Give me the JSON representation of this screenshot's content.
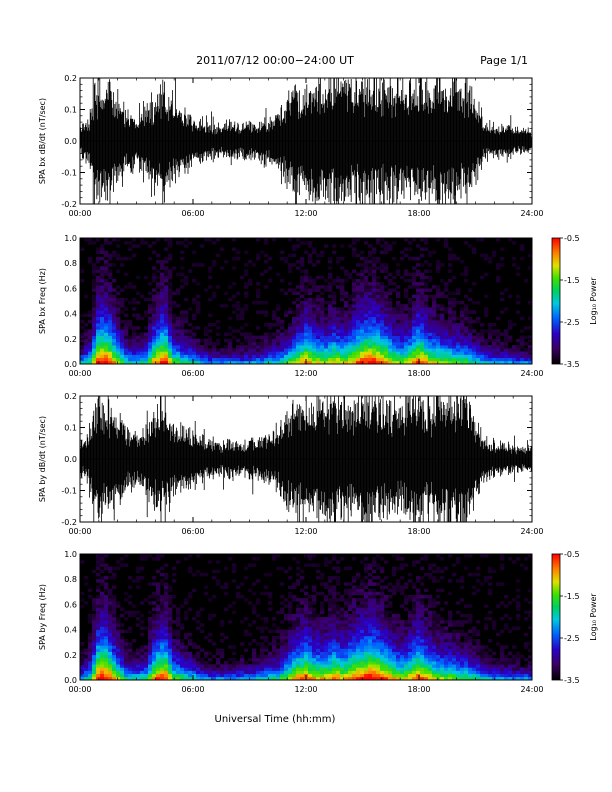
{
  "header": {
    "title": "2011/07/12  00:00−24:00 UT",
    "page": "Page 1/1"
  },
  "footer": {
    "xlabel": "Universal Time (hh:mm)"
  },
  "chart_data": [
    {
      "type": "line",
      "ylabel": "SPA bx dB/dt (nT/sec)",
      "xlim": [
        0,
        24
      ],
      "ylim": [
        -0.2,
        0.2
      ],
      "xticks": [
        "00:00",
        "06:00",
        "12:00",
        "18:00",
        "24:00"
      ],
      "yticks": [
        "-0.2",
        "-0.1",
        "0.0",
        "0.1",
        "0.2"
      ],
      "x": [
        0,
        0.5,
        1,
        1.5,
        2,
        2.5,
        3,
        3.5,
        4,
        4.5,
        5,
        5.5,
        6,
        6.5,
        7,
        7.5,
        8,
        8.5,
        9,
        9.5,
        10,
        10.5,
        11,
        11.5,
        12,
        12.5,
        13,
        13.5,
        14,
        14.5,
        15,
        15.5,
        16,
        16.5,
        17,
        17.5,
        18,
        18.5,
        19,
        19.5,
        20,
        20.5,
        21,
        21.5,
        22,
        22.5,
        23,
        23.5,
        24
      ],
      "amplitude": [
        0.05,
        0.08,
        0.2,
        0.2,
        0.15,
        0.1,
        0.09,
        0.1,
        0.15,
        0.2,
        0.12,
        0.1,
        0.08,
        0.06,
        0.05,
        0.05,
        0.06,
        0.05,
        0.06,
        0.06,
        0.08,
        0.09,
        0.15,
        0.2,
        0.2,
        0.2,
        0.2,
        0.2,
        0.2,
        0.2,
        0.2,
        0.2,
        0.2,
        0.2,
        0.2,
        0.2,
        0.2,
        0.2,
        0.2,
        0.2,
        0.2,
        0.2,
        0.14,
        0.06,
        0.05,
        0.05,
        0.04,
        0.04,
        0.04
      ]
    },
    {
      "type": "heatmap",
      "ylabel": "SPA bx Freq (Hz)",
      "xlim": [
        0,
        24
      ],
      "ylim": [
        0,
        1.0
      ],
      "xticks": [
        "00:00",
        "06:00",
        "12:00",
        "18:00",
        "24:00"
      ],
      "yticks": [
        "0.0",
        "0.2",
        "0.4",
        "0.6",
        "0.8",
        "1.0"
      ],
      "colorbar": {
        "label": "Log₁₀ Power",
        "range": [
          -3.5,
          -0.5
        ],
        "ticks": [
          "-0.5",
          "-1.5",
          "-2.5",
          "-3.5"
        ]
      },
      "x": [
        0,
        0.5,
        1,
        1.5,
        2,
        2.5,
        3,
        3.5,
        4,
        4.5,
        5,
        5.5,
        6,
        6.5,
        7,
        7.5,
        8,
        8.5,
        9,
        9.5,
        10,
        10.5,
        11,
        11.5,
        12,
        12.5,
        13,
        13.5,
        14,
        14.5,
        15,
        15.5,
        16,
        16.5,
        17,
        17.5,
        18,
        18.5,
        19,
        19.5,
        20,
        20.5,
        21,
        21.5,
        22,
        22.5,
        23,
        23.5,
        24
      ],
      "activity": [
        0.2,
        0.35,
        1.0,
        0.95,
        0.6,
        0.3,
        0.3,
        0.35,
        0.8,
        0.95,
        0.5,
        0.4,
        0.3,
        0.2,
        0.15,
        0.15,
        0.15,
        0.15,
        0.18,
        0.2,
        0.25,
        0.3,
        0.45,
        0.6,
        0.8,
        0.65,
        0.6,
        0.7,
        0.6,
        0.75,
        0.9,
        0.95,
        0.85,
        0.7,
        0.55,
        0.65,
        0.9,
        0.7,
        0.6,
        0.55,
        0.5,
        0.45,
        0.35,
        0.25,
        0.2,
        0.2,
        0.15,
        0.15,
        0.15
      ]
    },
    {
      "type": "line",
      "ylabel": "SPA by dB/dt (nT/sec)",
      "xlim": [
        0,
        24
      ],
      "ylim": [
        -0.2,
        0.2
      ],
      "xticks": [
        "00:00",
        "06:00",
        "12:00",
        "18:00",
        "24:00"
      ],
      "yticks": [
        "-0.2",
        "-0.1",
        "0.0",
        "0.1",
        "0.2"
      ],
      "x": [
        0,
        0.5,
        1,
        1.5,
        2,
        2.5,
        3,
        3.5,
        4,
        4.5,
        5,
        5.5,
        6,
        6.5,
        7,
        7.5,
        8,
        8.5,
        9,
        9.5,
        10,
        10.5,
        11,
        11.5,
        12,
        12.5,
        13,
        13.5,
        14,
        14.5,
        15,
        15.5,
        16,
        16.5,
        17,
        17.5,
        18,
        18.5,
        19,
        19.5,
        20,
        20.5,
        21,
        21.5,
        22,
        22.5,
        23,
        23.5,
        24
      ],
      "amplitude": [
        0.05,
        0.08,
        0.2,
        0.2,
        0.14,
        0.1,
        0.09,
        0.1,
        0.15,
        0.2,
        0.12,
        0.1,
        0.09,
        0.07,
        0.06,
        0.05,
        0.06,
        0.05,
        0.06,
        0.06,
        0.08,
        0.09,
        0.16,
        0.2,
        0.2,
        0.2,
        0.2,
        0.2,
        0.2,
        0.2,
        0.2,
        0.2,
        0.2,
        0.2,
        0.2,
        0.2,
        0.2,
        0.2,
        0.2,
        0.2,
        0.2,
        0.2,
        0.13,
        0.07,
        0.05,
        0.05,
        0.04,
        0.04,
        0.04
      ]
    },
    {
      "type": "heatmap",
      "ylabel": "SPA by Freq (Hz)",
      "xlim": [
        0,
        24
      ],
      "ylim": [
        0,
        1.0
      ],
      "xticks": [
        "00:00",
        "06:00",
        "12:00",
        "18:00",
        "24:00"
      ],
      "yticks": [
        "0.0",
        "0.2",
        "0.4",
        "0.6",
        "0.8",
        "1.0"
      ],
      "colorbar": {
        "label": "Log₁₀ Power",
        "range": [
          -3.5,
          -0.5
        ],
        "ticks": [
          "-0.5",
          "-1.5",
          "-2.5",
          "-3.5"
        ]
      },
      "x": [
        0,
        0.5,
        1,
        1.5,
        2,
        2.5,
        3,
        3.5,
        4,
        4.5,
        5,
        5.5,
        6,
        6.5,
        7,
        7.5,
        8,
        8.5,
        9,
        9.5,
        10,
        10.5,
        11,
        11.5,
        12,
        12.5,
        13,
        13.5,
        14,
        14.5,
        15,
        15.5,
        16,
        16.5,
        17,
        17.5,
        18,
        18.5,
        19,
        19.5,
        20,
        20.5,
        21,
        21.5,
        22,
        22.5,
        23,
        23.5,
        24
      ],
      "activity": [
        0.2,
        0.35,
        1.0,
        0.95,
        0.6,
        0.3,
        0.3,
        0.35,
        0.8,
        0.95,
        0.5,
        0.4,
        0.3,
        0.2,
        0.15,
        0.15,
        0.15,
        0.18,
        0.2,
        0.25,
        0.3,
        0.35,
        0.55,
        0.75,
        0.85,
        0.7,
        0.7,
        0.8,
        0.7,
        0.85,
        0.95,
        1.0,
        0.9,
        0.75,
        0.6,
        0.7,
        0.9,
        0.7,
        0.6,
        0.55,
        0.5,
        0.45,
        0.35,
        0.25,
        0.2,
        0.2,
        0.15,
        0.15,
        0.15
      ]
    }
  ]
}
